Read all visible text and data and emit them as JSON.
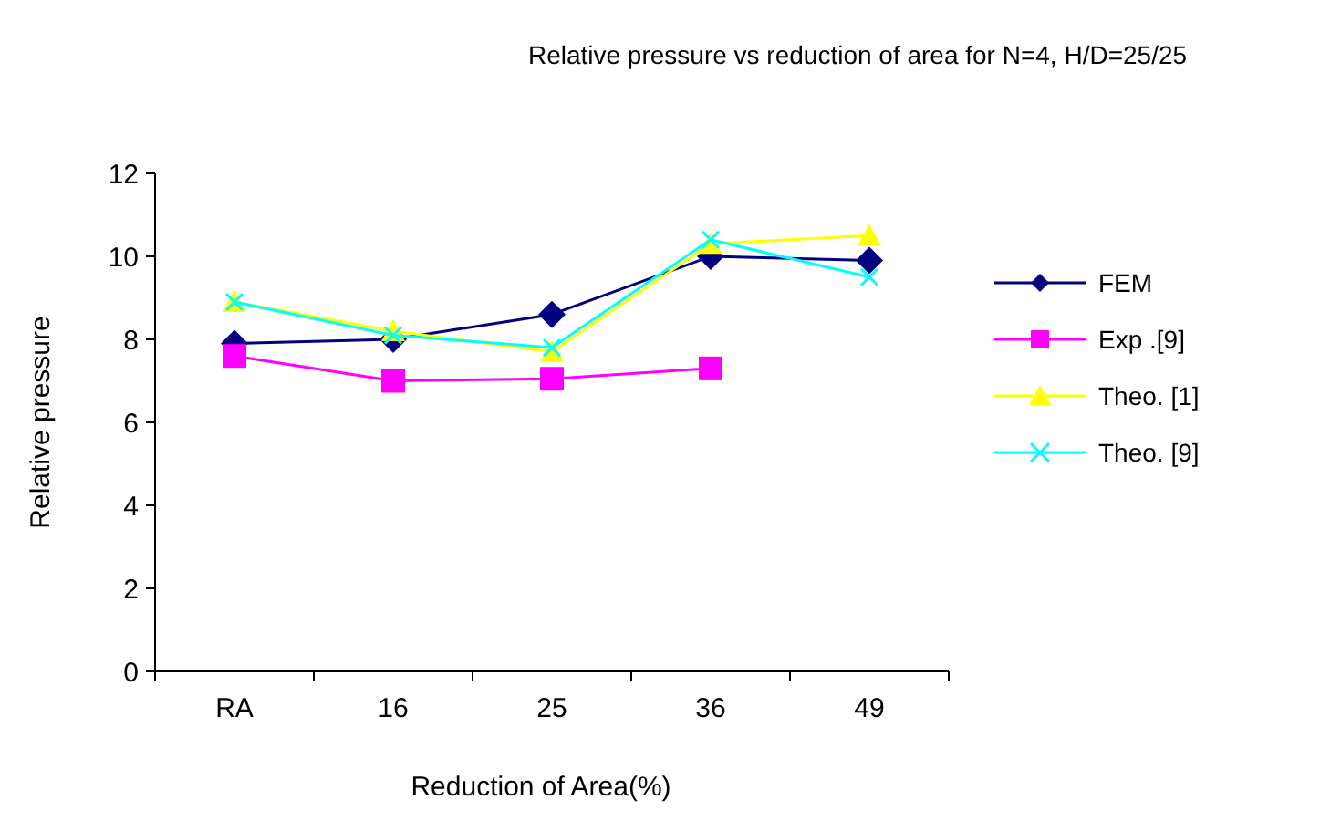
{
  "chart_data": {
    "type": "line",
    "title": "Relative pressure vs reduction of area for N=4, H/D=25/25",
    "xlabel": "Reduction of Area(%)",
    "ylabel": "Relative pressure",
    "categories": [
      "RA",
      "16",
      "25",
      "36",
      "49"
    ],
    "ylim": [
      0,
      12
    ],
    "yticks": [
      0,
      2,
      4,
      6,
      8,
      10,
      12
    ],
    "grid": false,
    "legend": "right",
    "series": [
      {
        "name": "FEM",
        "color": "#000080",
        "marker": "diamond",
        "values": [
          7.9,
          8.0,
          8.6,
          10.0,
          9.9
        ]
      },
      {
        "name": "Exp .[9]",
        "color": "#ff00ff",
        "marker": "square",
        "values": [
          7.6,
          7.0,
          7.05,
          7.3,
          null
        ]
      },
      {
        "name": "Theo. [1]",
        "color": "#ffff00",
        "marker": "triangle",
        "values": [
          8.9,
          8.2,
          7.7,
          10.3,
          10.5
        ]
      },
      {
        "name": "Theo. [9]",
        "color": "#00ffff",
        "marker": "cross",
        "values": [
          8.9,
          8.1,
          7.8,
          10.4,
          9.5
        ]
      }
    ]
  }
}
